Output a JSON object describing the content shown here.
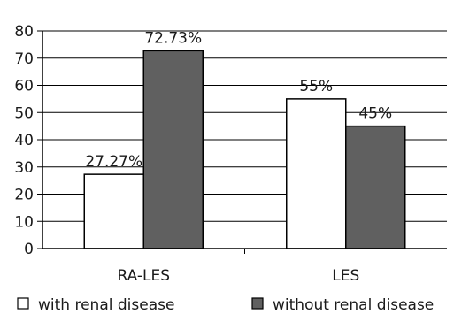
{
  "chart_data": {
    "type": "bar",
    "categories": [
      "RA-LES",
      "LES"
    ],
    "series": [
      {
        "name": "with renal disease",
        "color": "#ffffff",
        "values": [
          27.27,
          55
        ],
        "labels": [
          "27.27%",
          "55%"
        ]
      },
      {
        "name": "without renal disease",
        "color": "#606060",
        "values": [
          72.73,
          45
        ],
        "labels": [
          "72.73%",
          "45%"
        ]
      }
    ],
    "y_ticks": [
      "0",
      "10",
      "20",
      "30",
      "40",
      "50",
      "60",
      "70",
      "80"
    ],
    "ylim": [
      0,
      80
    ],
    "grid": true,
    "legend_position": "bottom"
  }
}
